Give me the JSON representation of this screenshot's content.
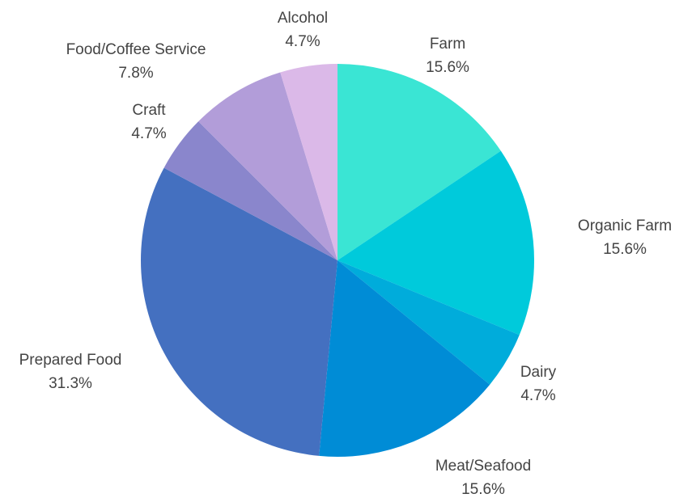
{
  "chart_data": {
    "type": "pie",
    "title": "",
    "slices": [
      {
        "label": "Farm",
        "value": 15.6,
        "display": "15.6%",
        "color": "#3ae5d4"
      },
      {
        "label": "Organic Farm",
        "value": 15.6,
        "display": "15.6%",
        "color": "#00cadb"
      },
      {
        "label": "Dairy",
        "value": 4.7,
        "display": "4.7%",
        "color": "#00acdb"
      },
      {
        "label": "Meat/Seafood",
        "value": 15.6,
        "display": "15.6%",
        "color": "#008cd6"
      },
      {
        "label": "Prepared Food",
        "value": 31.3,
        "display": "31.3%",
        "color": "#4470c0"
      },
      {
        "label": "Craft",
        "value": 4.7,
        "display": "4.7%",
        "color": "#8a86cc"
      },
      {
        "label": "Food/Coffee Service",
        "value": 7.8,
        "display": "7.8%",
        "color": "#b29dd9"
      },
      {
        "label": "Alcohol",
        "value": 4.7,
        "display": "4.7%",
        "color": "#dbb9e8"
      }
    ],
    "start_angle": "12 o'clock",
    "direction": "clockwise",
    "legend": "none",
    "labels": "outside"
  }
}
